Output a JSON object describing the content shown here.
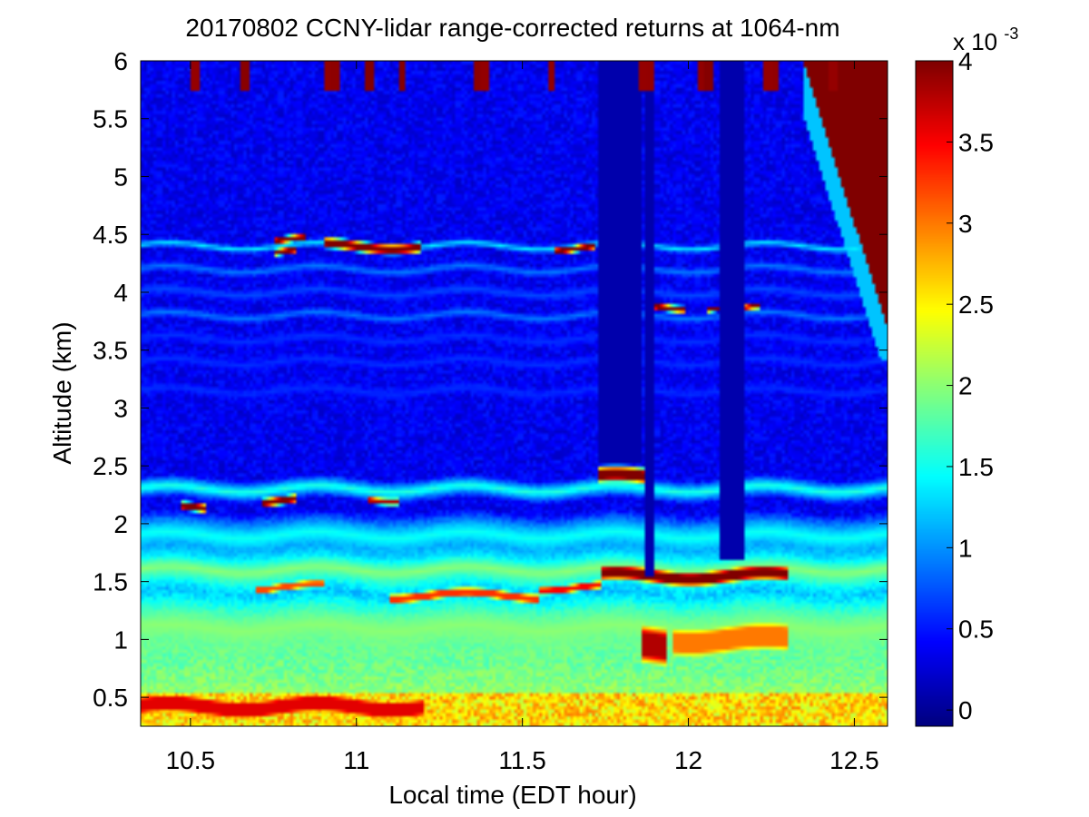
{
  "chart_data": {
    "type": "heatmap",
    "title": "20170802 CCNY-lidar range-corrected returns at 1064-nm",
    "xlabel": "Local time (EDT hour)",
    "ylabel": "Altitude (km)",
    "xlim": [
      10.35,
      12.6
    ],
    "ylim": [
      0.25,
      6.0
    ],
    "x_ticks": [
      10.5,
      11,
      11.5,
      12,
      12.5
    ],
    "x_tick_labels": [
      "10.5",
      "11",
      "11.5",
      "12",
      "12.5"
    ],
    "y_ticks": [
      0.5,
      1,
      1.5,
      2,
      2.5,
      3,
      3.5,
      4,
      4.5,
      5,
      5.5,
      6
    ],
    "y_tick_labels": [
      "0.5",
      "1",
      "1.5",
      "2",
      "2.5",
      "3",
      "3.5",
      "4",
      "4.5",
      "5",
      "5.5",
      "6"
    ],
    "colorbar": {
      "colormap": "jet",
      "min": -0.1,
      "max": 4,
      "ticks": [
        0,
        0.5,
        1,
        1.5,
        2,
        2.5,
        3,
        3.5,
        4
      ],
      "tick_labels": [
        "0",
        "0.5",
        "1",
        "1.5",
        "2",
        "2.5",
        "3",
        "3.5",
        "4"
      ],
      "multiplier_label": "x 10",
      "multiplier_exponent": "-3"
    },
    "features": [
      {
        "kind": "layer",
        "t0": 10.35,
        "t1": 12.62,
        "z": 3.15,
        "value": 0.6,
        "thick": 0.06
      },
      {
        "kind": "layer",
        "t0": 10.35,
        "t1": 12.62,
        "z": 3.4,
        "value": 0.6,
        "thick": 0.06
      },
      {
        "kind": "layer",
        "t0": 10.35,
        "t1": 12.62,
        "z": 3.6,
        "value": 0.6,
        "thick": 0.06
      },
      {
        "kind": "layer",
        "t0": 10.35,
        "t1": 12.62,
        "z": 3.8,
        "value": 0.9,
        "thick": 0.05
      },
      {
        "kind": "layer",
        "t0": 10.35,
        "t1": 12.62,
        "z": 4.0,
        "value": 0.7,
        "thick": 0.06
      },
      {
        "kind": "layer",
        "t0": 10.35,
        "t1": 12.62,
        "z": 4.2,
        "value": 0.9,
        "thick": 0.05
      },
      {
        "kind": "layer",
        "t0": 10.35,
        "t1": 12.62,
        "z": 4.4,
        "value": 1.4,
        "thick": 0.04
      },
      {
        "kind": "blob",
        "t0": 10.75,
        "t1": 10.85,
        "z": 4.45,
        "value": 4,
        "thick": 0.04
      },
      {
        "kind": "blob",
        "t0": 10.75,
        "t1": 10.82,
        "z": 4.35,
        "value": 4,
        "thick": 0.04
      },
      {
        "kind": "blob",
        "t0": 10.9,
        "t1": 11.19,
        "z": 4.4,
        "value": 4,
        "thick": 0.06
      },
      {
        "kind": "blob",
        "t0": 11.6,
        "t1": 11.72,
        "z": 4.38,
        "value": 4,
        "thick": 0.04
      },
      {
        "kind": "blob",
        "t0": 11.88,
        "t1": 11.99,
        "z": 3.88,
        "value": 4,
        "thick": 0.04
      },
      {
        "kind": "blob",
        "t0": 12.06,
        "t1": 12.09,
        "z": 3.87,
        "value": 4,
        "thick": 0.03
      },
      {
        "kind": "blob",
        "t0": 12.17,
        "t1": 12.22,
        "z": 3.85,
        "value": 4,
        "thick": 0.03
      },
      {
        "kind": "layer",
        "t0": 10.35,
        "t1": 12.62,
        "z": 2.3,
        "value": 1.6,
        "thick": 0.1
      },
      {
        "kind": "blob",
        "t0": 10.47,
        "t1": 10.55,
        "z": 2.13,
        "value": 4,
        "thick": 0.05
      },
      {
        "kind": "blob",
        "t0": 10.72,
        "t1": 10.82,
        "z": 2.2,
        "value": 4,
        "thick": 0.05
      },
      {
        "kind": "blob",
        "t0": 11.03,
        "t1": 11.13,
        "z": 2.22,
        "value": 3.8,
        "thick": 0.04
      },
      {
        "kind": "blob",
        "t0": 11.73,
        "t1": 11.87,
        "z": 2.4,
        "value": 4,
        "thick": 0.09
      },
      {
        "kind": "layer",
        "t0": 10.35,
        "t1": 12.62,
        "z": 1.9,
        "value": 1.5,
        "thick": 0.2
      },
      {
        "kind": "layer",
        "t0": 10.35,
        "t1": 12.62,
        "z": 1.6,
        "value": 2.0,
        "thick": 0.2
      },
      {
        "kind": "layer",
        "t0": 10.35,
        "t1": 12.62,
        "z": 1.1,
        "value": 2.0,
        "thick": 0.3
      },
      {
        "kind": "blob",
        "t0": 10.7,
        "t1": 10.9,
        "z": 1.45,
        "value": 3.2,
        "thick": 0.05
      },
      {
        "kind": "blob",
        "t0": 11.1,
        "t1": 11.55,
        "z": 1.38,
        "value": 3.3,
        "thick": 0.06
      },
      {
        "kind": "blob",
        "t0": 11.55,
        "t1": 11.74,
        "z": 1.45,
        "value": 3.5,
        "thick": 0.05
      },
      {
        "kind": "blob",
        "t0": 11.74,
        "t1": 12.3,
        "z": 1.55,
        "value": 4,
        "thick": 0.09
      },
      {
        "kind": "blob",
        "t0": 11.86,
        "t1": 11.93,
        "z": 0.95,
        "value": 3.8,
        "thick": 0.25
      },
      {
        "kind": "blob",
        "t0": 11.95,
        "t1": 12.3,
        "z": 1.0,
        "value": 3.0,
        "thick": 0.2
      },
      {
        "kind": "blob",
        "t0": 10.35,
        "t1": 11.2,
        "z": 0.42,
        "value": 3.6,
        "thick": 0.13
      },
      {
        "kind": "fill",
        "t0": 10.35,
        "t1": 12.62,
        "z0": 0.25,
        "z1": 0.55,
        "value": 2.6
      },
      {
        "kind": "gap",
        "t0": 11.73,
        "t1": 11.86,
        "z0": 2.52,
        "z1": 6.0,
        "value": 0.08
      },
      {
        "kind": "gap",
        "t0": 11.87,
        "t1": 11.9,
        "z0": 1.55,
        "z1": 6.0,
        "value": 0.08
      },
      {
        "kind": "gap",
        "t0": 12.09,
        "t1": 12.17,
        "z0": 1.7,
        "z1": 6.0,
        "value": 0.08
      },
      {
        "kind": "cloud",
        "t0": 12.35,
        "t1": 12.62,
        "value": 4
      }
    ]
  }
}
